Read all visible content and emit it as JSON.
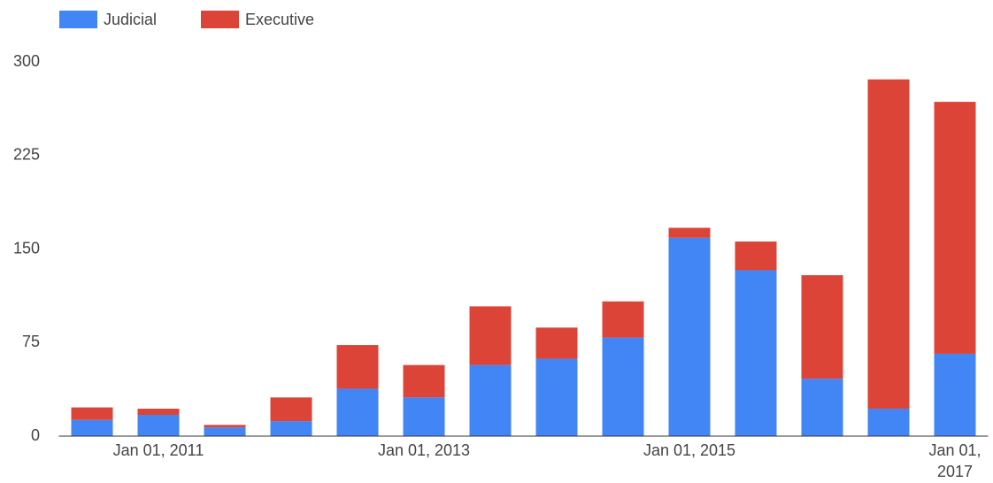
{
  "chart_data": {
    "type": "stacked_bar",
    "categories": [
      null,
      "Jan 01, 2011",
      null,
      null,
      null,
      "Jan 01, 2013",
      null,
      null,
      null,
      "Jan 01, 2015",
      null,
      null,
      null,
      "Jan 01, 2017"
    ],
    "series": [
      {
        "name": "Judicial",
        "color": "#4285f4",
        "values": [
          13,
          17,
          7,
          12,
          38,
          31,
          57,
          62,
          79,
          159,
          133,
          46,
          22,
          66
        ]
      },
      {
        "name": "Executive",
        "color": "#db4437",
        "values": [
          10,
          5,
          2,
          19,
          35,
          26,
          47,
          25,
          29,
          8,
          23,
          83,
          264,
          202
        ]
      }
    ],
    "ylim": [
      0,
      300
    ],
    "yticks": [
      0,
      75,
      150,
      225,
      300
    ],
    "grid": false,
    "legend": "top"
  }
}
